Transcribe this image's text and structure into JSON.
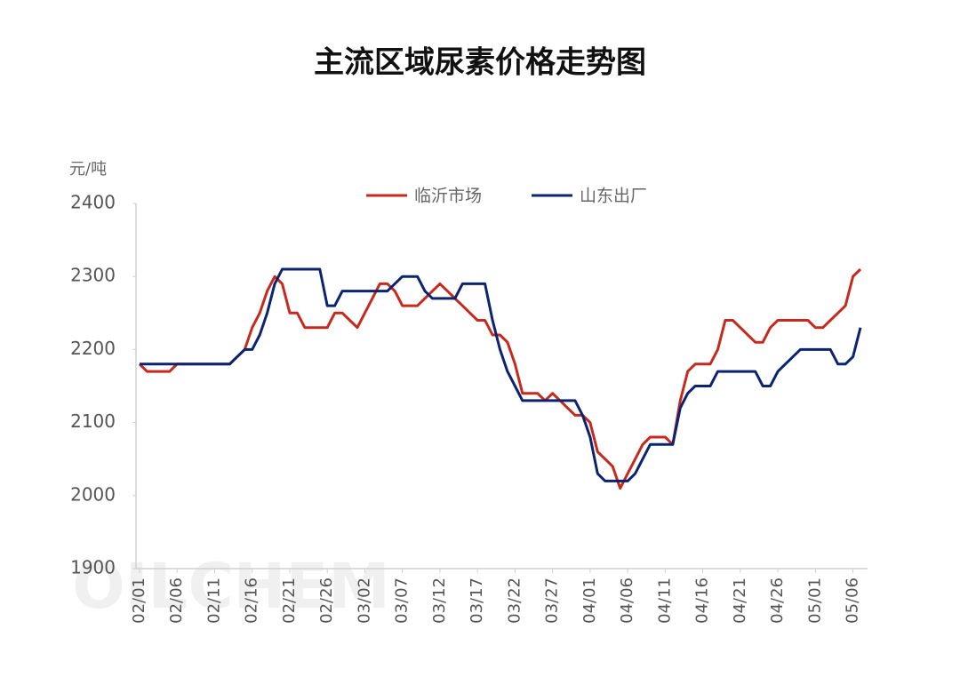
{
  "chart_data": {
    "type": "line",
    "title": "主流区域尿素价格走势图",
    "y_label": "元/吨",
    "watermark": "OILCHEM",
    "categories": [
      "02/01",
      null,
      null,
      null,
      null,
      "02/06",
      null,
      null,
      null,
      null,
      "02/11",
      null,
      null,
      null,
      null,
      "02/16",
      null,
      null,
      null,
      null,
      "02/21",
      null,
      null,
      null,
      null,
      "02/26",
      null,
      null,
      null,
      null,
      "03/02",
      null,
      null,
      null,
      null,
      "03/07",
      null,
      null,
      null,
      null,
      "03/12",
      null,
      null,
      null,
      null,
      "03/17",
      null,
      null,
      null,
      null,
      "03/22",
      null,
      null,
      null,
      null,
      "03/27",
      null,
      null,
      null,
      null,
      "04/01",
      null,
      null,
      null,
      null,
      "04/06",
      null,
      null,
      null,
      null,
      "04/11",
      null,
      null,
      null,
      null,
      "04/16",
      null,
      null,
      null,
      null,
      "04/21",
      null,
      null,
      null,
      null,
      "04/26",
      null,
      null,
      null,
      null,
      "05/01",
      null,
      null,
      null,
      null,
      "05/06",
      null
    ],
    "series": [
      {
        "name": "临沂市场",
        "color": "#c62a1e",
        "values": [
          2180,
          2170,
          2170,
          2170,
          2170,
          2180,
          2180,
          2180,
          2180,
          2180,
          2180,
          2180,
          2180,
          2190,
          2200,
          2230,
          2250,
          2280,
          2300,
          2290,
          2250,
          2250,
          2230,
          2230,
          2230,
          2230,
          2250,
          2250,
          2240,
          2230,
          2250,
          2270,
          2290,
          2290,
          2280,
          2260,
          2260,
          2260,
          2270,
          2280,
          2290,
          2280,
          2270,
          2260,
          2250,
          2240,
          2240,
          2220,
          2220,
          2210,
          2180,
          2140,
          2140,
          2140,
          2130,
          2140,
          2130,
          2120,
          2110,
          2110,
          2100,
          2060,
          2050,
          2040,
          2010,
          2030,
          2050,
          2070,
          2080,
          2080,
          2080,
          2070,
          2130,
          2170,
          2180,
          2180,
          2180,
          2200,
          2240,
          2240,
          2230,
          2220,
          2210,
          2210,
          2230,
          2240,
          2240,
          2240,
          2240,
          2240,
          2230,
          2230,
          2240,
          2250,
          2260,
          2300,
          2310
        ]
      },
      {
        "name": "山东出厂",
        "color": "#0c2470",
        "values": [
          2180,
          2180,
          2180,
          2180,
          2180,
          2180,
          2180,
          2180,
          2180,
          2180,
          2180,
          2180,
          2180,
          2190,
          2200,
          2200,
          2220,
          2250,
          2290,
          2310,
          2310,
          2310,
          2310,
          2310,
          2310,
          2260,
          2260,
          2280,
          2280,
          2280,
          2280,
          2280,
          2280,
          2280,
          2290,
          2300,
          2300,
          2300,
          2280,
          2270,
          2270,
          2270,
          2270,
          2290,
          2290,
          2290,
          2290,
          2240,
          2200,
          2170,
          2150,
          2130,
          2130,
          2130,
          2130,
          2130,
          2130,
          2130,
          2130,
          2110,
          2080,
          2030,
          2020,
          2020,
          2020,
          2020,
          2030,
          2050,
          2070,
          2070,
          2070,
          2070,
          2120,
          2140,
          2150,
          2150,
          2150,
          2170,
          2170,
          2170,
          2170,
          2170,
          2170,
          2150,
          2150,
          2170,
          2180,
          2190,
          2200,
          2200,
          2200,
          2200,
          2200,
          2180,
          2180,
          2190,
          2230
        ]
      }
    ],
    "ylim": [
      1900,
      2400
    ],
    "yticks": [
      1900,
      2000,
      2100,
      2200,
      2300,
      2400
    ],
    "grid": false
  }
}
